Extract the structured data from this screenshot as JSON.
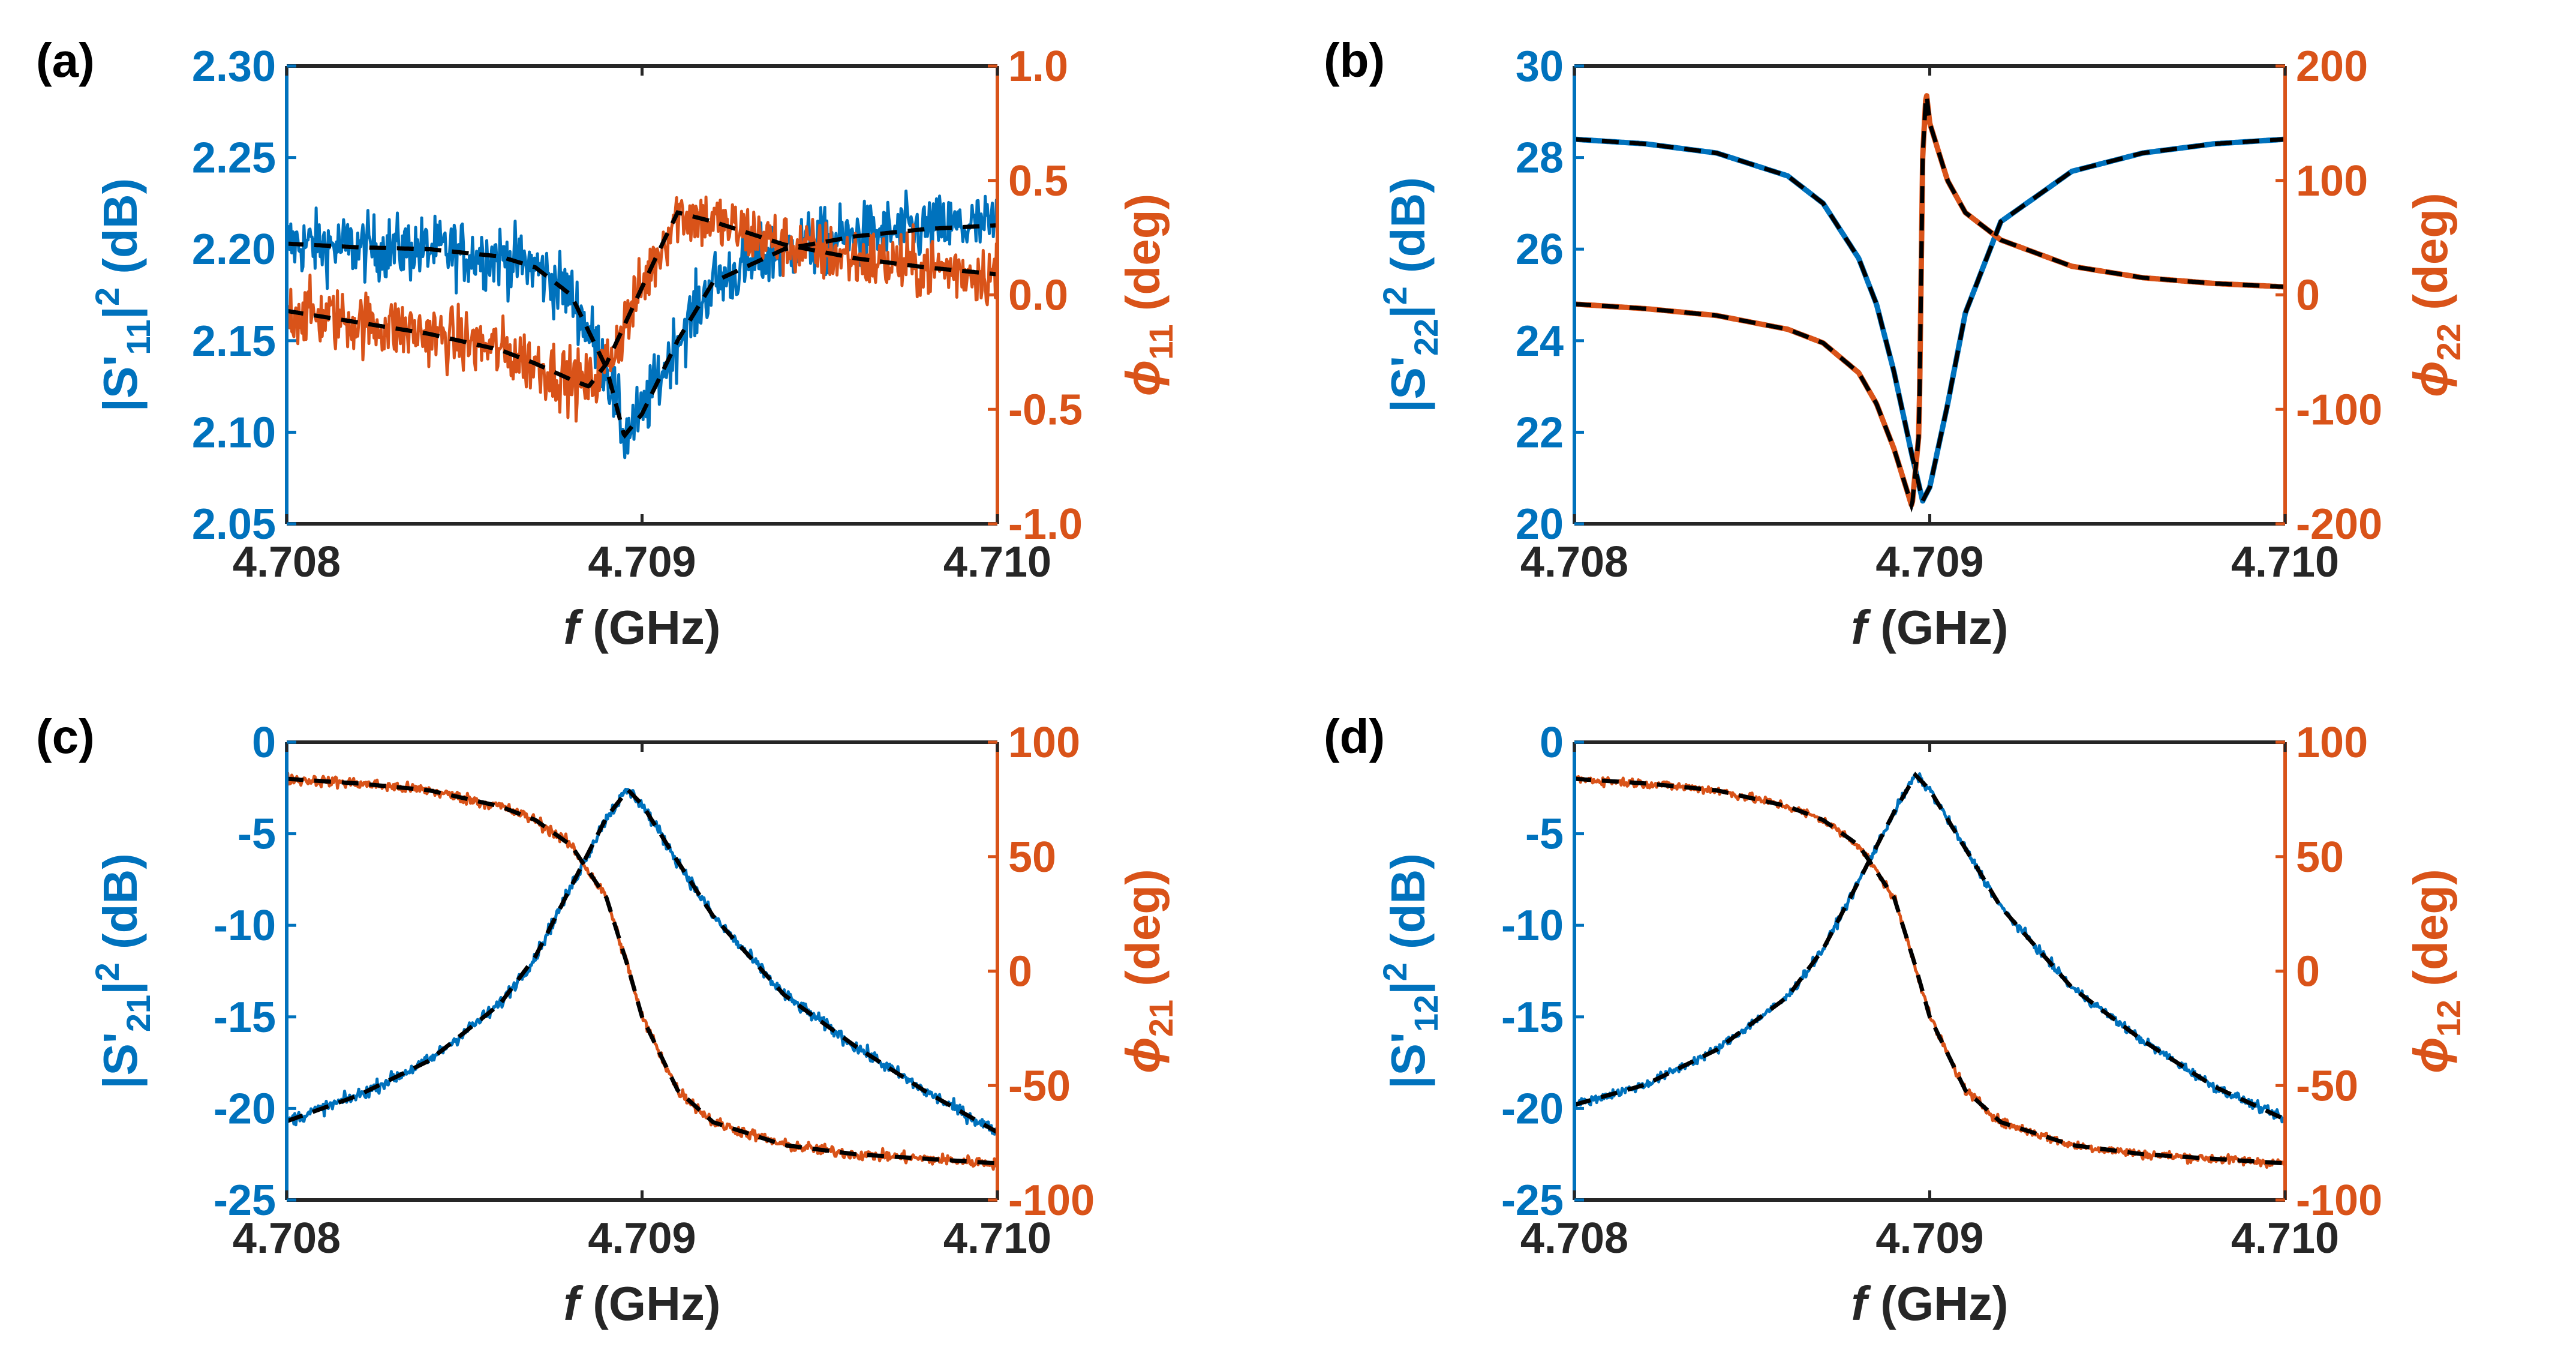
{
  "colors": {
    "magnitude": "#0072BD",
    "phase": "#D95319",
    "fit": "#000000",
    "axis_text": "#262626"
  },
  "chart_data": [
    {
      "panel_label": "(a)",
      "type": "line",
      "xlabel_italic": "f",
      "xlabel_rest": "(GHz)",
      "xlim": [
        4.708,
        4.71
      ],
      "xticks": [
        "4.708",
        "4.709",
        "4.710"
      ],
      "ylabel_left": {
        "pre": "|S'",
        "sub": "11",
        "mid": "|",
        "sup": "2",
        "post": " (dB)"
      },
      "ylim_left": [
        2.05,
        2.3
      ],
      "yticks_left": [
        "2.05",
        "2.10",
        "2.15",
        "2.20",
        "2.25",
        "2.30"
      ],
      "ylabel_right": {
        "sym": "ϕ",
        "sub": "11",
        "post": " (deg)"
      },
      "ylim_right": [
        -1,
        1
      ],
      "yticks_right": [
        "-1.0",
        "-0.5",
        "0.0",
        "0.5",
        "1.0"
      ],
      "f0": 4.70895,
      "magnitude": {
        "x": [
          4.708,
          4.7082,
          4.7084,
          4.7086,
          4.7087,
          4.7088,
          4.7089,
          4.70895,
          4.709,
          4.7091,
          4.7092,
          4.7094,
          4.7096,
          4.7098,
          4.71
        ],
        "y": [
          2.203,
          2.201,
          2.2,
          2.196,
          2.19,
          2.175,
          2.135,
          2.098,
          2.11,
          2.15,
          2.182,
          2.2,
          2.207,
          2.211,
          2.213
        ],
        "noise": 0.018
      },
      "phase": {
        "x": [
          4.708,
          4.7082,
          4.7084,
          4.7086,
          4.7087,
          4.7088,
          4.70885,
          4.7089,
          4.70905,
          4.7091,
          4.7092,
          4.7094,
          4.7096,
          4.7098,
          4.71
        ],
        "y": [
          -0.07,
          -0.12,
          -0.17,
          -0.24,
          -0.3,
          -0.37,
          -0.4,
          -0.3,
          0.2,
          0.36,
          0.32,
          0.22,
          0.16,
          0.12,
          0.09
        ],
        "noise": 0.14
      }
    },
    {
      "panel_label": "(b)",
      "type": "line",
      "xlabel_italic": "f",
      "xlabel_rest": "(GHz)",
      "xlim": [
        4.708,
        4.71
      ],
      "xticks": [
        "4.708",
        "4.709",
        "4.710"
      ],
      "ylabel_left": {
        "pre": "|S'",
        "sub": "22",
        "mid": "|",
        "sup": "2",
        "post": " (dB)"
      },
      "ylim_left": [
        20,
        30
      ],
      "yticks_left": [
        "20",
        "22",
        "24",
        "26",
        "28",
        "30"
      ],
      "ylabel_right": {
        "sym": "ϕ",
        "sub": "22",
        "post": " (deg)"
      },
      "ylim_right": [
        -200,
        200
      ],
      "yticks_right": [
        "-200",
        "-100",
        "0",
        "100",
        "200"
      ],
      "f0": 4.70898,
      "magnitude": {
        "x": [
          4.708,
          4.7082,
          4.7084,
          4.7086,
          4.7087,
          4.7088,
          4.70885,
          4.7089,
          4.70895,
          4.70898,
          4.709,
          4.70905,
          4.7091,
          4.7092,
          4.7094,
          4.7096,
          4.7098,
          4.71
        ],
        "y": [
          28.4,
          28.3,
          28.1,
          27.6,
          27.0,
          25.8,
          24.8,
          23.3,
          21.5,
          20.5,
          20.8,
          22.6,
          24.6,
          26.6,
          27.7,
          28.1,
          28.3,
          28.4
        ],
        "noise": 0
      },
      "phase": {
        "x": [
          4.708,
          4.7082,
          4.7084,
          4.7086,
          4.7087,
          4.7088,
          4.70885,
          4.7089,
          4.70895,
          4.70897,
          4.70898,
          4.70899,
          4.709,
          4.70905,
          4.7091,
          4.7092,
          4.7094,
          4.7096,
          4.7098,
          4.71
        ],
        "y": [
          -8,
          -12,
          -18,
          -30,
          -42,
          -68,
          -95,
          -135,
          -185,
          -120,
          120,
          178,
          150,
          100,
          72,
          48,
          25,
          15,
          10,
          7
        ],
        "noise": 0
      }
    },
    {
      "panel_label": "(c)",
      "type": "line",
      "xlabel_italic": "f",
      "xlabel_rest": "(GHz)",
      "xlim": [
        4.708,
        4.71
      ],
      "xticks": [
        "4.708",
        "4.709",
        "4.710"
      ],
      "ylabel_left": {
        "pre": "|S'",
        "sub": "21",
        "mid": "|",
        "sup": "2",
        "post": " (dB)"
      },
      "ylim_left": [
        -25,
        0
      ],
      "yticks_left": [
        "-25",
        "-20",
        "-15",
        "-10",
        "-5",
        "0"
      ],
      "ylabel_right": {
        "sym": "ϕ",
        "sub": "21",
        "post": " (deg)"
      },
      "ylim_right": [
        -100,
        100
      ],
      "yticks_right": [
        "-100",
        "-50",
        "0",
        "50",
        "100"
      ],
      "f0": 4.70896,
      "magnitude": {
        "x": [
          4.708,
          4.7082,
          4.7084,
          4.7086,
          4.7087,
          4.7088,
          4.7089,
          4.70896,
          4.709,
          4.7091,
          4.7092,
          4.7094,
          4.7096,
          4.7098,
          4.71
        ],
        "y": [
          -20.7,
          -19.3,
          -17.4,
          -14.3,
          -11.7,
          -7.9,
          -4.1,
          -2.6,
          -3.4,
          -6.5,
          -9.5,
          -13.8,
          -16.6,
          -19.1,
          -21.3
        ],
        "noise": 0.35
      },
      "phase": {
        "x": [
          4.708,
          4.7082,
          4.7084,
          4.7086,
          4.7087,
          4.7088,
          4.7089,
          4.70896,
          4.709,
          4.7091,
          4.7092,
          4.7094,
          4.7096,
          4.7098,
          4.71
        ],
        "y": [
          84,
          82,
          79,
          72,
          66,
          55,
          32,
          2,
          -20,
          -52,
          -66,
          -76,
          -80,
          -82,
          -84
        ],
        "noise": 2.5
      }
    },
    {
      "panel_label": "(d)",
      "type": "line",
      "xlabel_italic": "f",
      "xlabel_rest": "(GHz)",
      "xlim": [
        4.708,
        4.71
      ],
      "xticks": [
        "4.708",
        "4.709",
        "4.710"
      ],
      "ylabel_left": {
        "pre": "|S'",
        "sub": "12",
        "mid": "|",
        "sup": "2",
        "post": " (dB)"
      },
      "ylim_left": [
        -25,
        0
      ],
      "yticks_left": [
        "-25",
        "-20",
        "-15",
        "-10",
        "-5",
        "0"
      ],
      "ylabel_right": {
        "sym": "ϕ",
        "sub": "12",
        "post": " (deg)"
      },
      "ylim_right": [
        -100,
        100
      ],
      "yticks_right": [
        "-100",
        "-50",
        "0",
        "50",
        "100"
      ],
      "f0": 4.70896,
      "magnitude": {
        "x": [
          4.708,
          4.7082,
          4.7084,
          4.7086,
          4.7087,
          4.7088,
          4.7089,
          4.70896,
          4.709,
          4.7091,
          4.7092,
          4.7094,
          4.7096,
          4.7098,
          4.71
        ],
        "y": [
          -19.8,
          -18.7,
          -16.8,
          -13.9,
          -11.3,
          -7.6,
          -3.8,
          -1.8,
          -2.6,
          -5.8,
          -9.0,
          -13.4,
          -16.3,
          -18.8,
          -20.6
        ],
        "noise": 0.25
      },
      "phase": {
        "x": [
          4.708,
          4.7082,
          4.7084,
          4.7086,
          4.7087,
          4.7088,
          4.7089,
          4.70896,
          4.709,
          4.7091,
          4.7092,
          4.7094,
          4.7096,
          4.7098,
          4.71
        ],
        "y": [
          84,
          82,
          79,
          72,
          66,
          55,
          32,
          2,
          -20,
          -52,
          -66,
          -76,
          -80,
          -82,
          -84
        ],
        "noise": 2.0
      }
    }
  ]
}
